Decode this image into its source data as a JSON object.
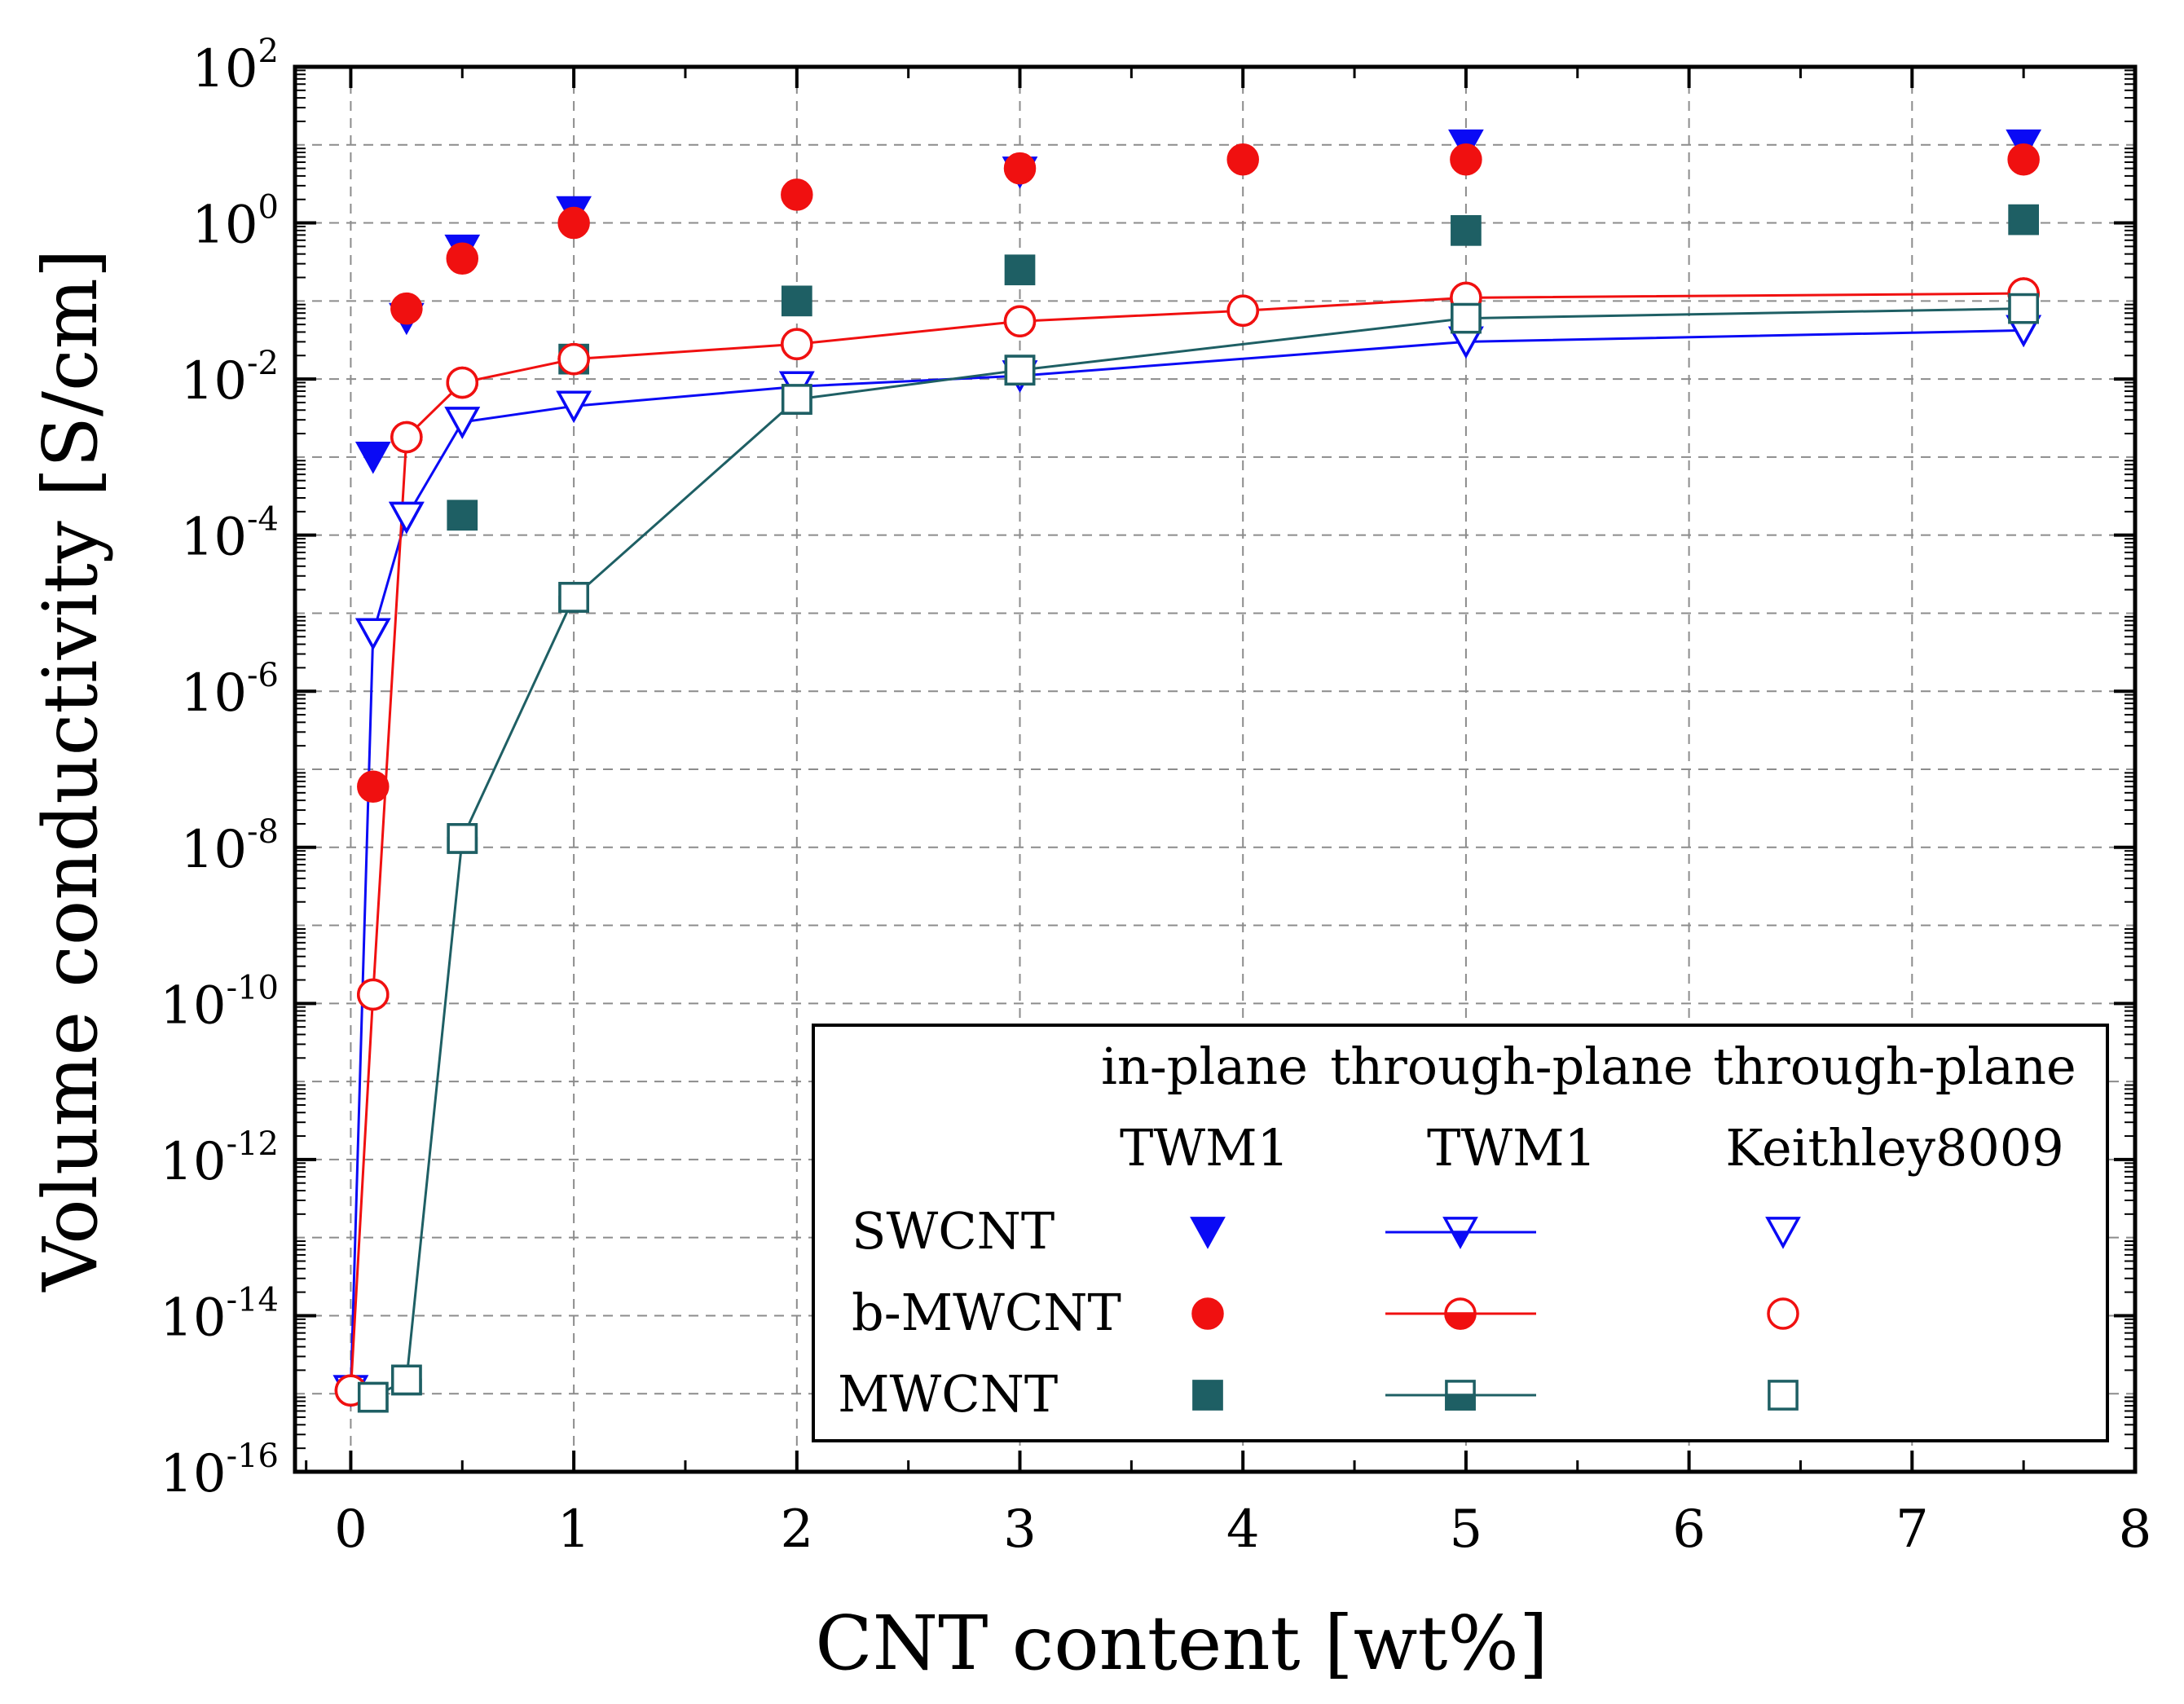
{
  "chart_data": {
    "type": "scatter",
    "title": "",
    "xlabel": "CNT content [wt%]",
    "ylabel": "Volume conductivity [S/cm]",
    "xlim": [
      -0.25,
      8
    ],
    "ylim_log10": [
      -16,
      2
    ],
    "yscale": "log",
    "x_ticks": [
      0,
      1,
      2,
      3,
      4,
      5,
      6,
      7,
      8
    ],
    "x_tick_labels": [
      "0",
      "1",
      "2",
      "3",
      "4",
      "5",
      "6",
      "7",
      "8"
    ],
    "y_ticks_exp": [
      2,
      0,
      -2,
      -4,
      -6,
      -8,
      -10,
      -12,
      -14,
      -16
    ],
    "y_tick_labels": [
      {
        "base": "10",
        "exp": "2"
      },
      {
        "base": "10",
        "exp": "0"
      },
      {
        "base": "10",
        "exp": "-2"
      },
      {
        "base": "10",
        "exp": "-4"
      },
      {
        "base": "10",
        "exp": "-6"
      },
      {
        "base": "10",
        "exp": "-8"
      },
      {
        "base": "10",
        "exp": "-10"
      },
      {
        "base": "10",
        "exp": "-12"
      },
      {
        "base": "10",
        "exp": "-14"
      },
      {
        "base": "10",
        "exp": "-16"
      }
    ],
    "grid": true,
    "legend": {
      "position": "bottom-right",
      "col_headers": [
        "in-plane",
        "through-plane",
        "through-plane"
      ],
      "col_subheaders": [
        "TWM1",
        "TWM1",
        "Keithley8009"
      ],
      "row_labels": [
        "SWCNT",
        "b-MWCNT",
        "MWCNT"
      ]
    },
    "colors": {
      "swcnt": "#0a0af5",
      "bmwcnt": "#f01010",
      "mwcnt": "#1e5f64"
    },
    "series": [
      {
        "name": "SWCNT in-plane TWM1",
        "material": "swcnt",
        "marker": "triangle-down",
        "fill": "filled",
        "line": false,
        "x": [
          0.1,
          0.25,
          0.5,
          1,
          3,
          5,
          7.5
        ],
        "y": [
          0.001,
          0.06,
          0.45,
          1.4,
          4.5,
          10,
          10
        ]
      },
      {
        "name": "b-MWCNT in-plane TWM1",
        "material": "bmwcnt",
        "marker": "circle",
        "fill": "filled",
        "line": false,
        "x": [
          0.1,
          0.25,
          0.5,
          1,
          2,
          3,
          4,
          5,
          7.5
        ],
        "y": [
          6e-08,
          0.08,
          0.35,
          1.0,
          2.3,
          5,
          6.5,
          6.5,
          6.5
        ]
      },
      {
        "name": "MWCNT in-plane TWM1",
        "material": "mwcnt",
        "marker": "square",
        "fill": "filled",
        "line": false,
        "x": [
          0.5,
          1,
          2,
          3,
          5,
          7.5
        ],
        "y": [
          0.00018,
          0.018,
          0.1,
          0.25,
          0.8,
          1.1
        ]
      },
      {
        "name": "SWCNT through-plane TWM1",
        "material": "swcnt",
        "marker": "triangle-down",
        "fill": "half",
        "line": true,
        "x": [
          0,
          0.1,
          0.25,
          0.5,
          1,
          2,
          3,
          5,
          7.5
        ],
        "y": [
          1.1e-15,
          5.5e-06,
          0.00017,
          0.0028,
          0.0045,
          0.008,
          0.011,
          0.03,
          0.042
        ]
      },
      {
        "name": "b-MWCNT through-plane TWM1",
        "material": "bmwcnt",
        "marker": "circle",
        "fill": "half",
        "line": true,
        "x": [
          0,
          0.1,
          0.25,
          0.5,
          1,
          2,
          3,
          4,
          5,
          7.5
        ],
        "y": [
          1.1e-15,
          1.3e-10,
          0.0018,
          0.009,
          0.018,
          0.028,
          0.055,
          0.075,
          0.11,
          0.125
        ]
      },
      {
        "name": "MWCNT through-plane TWM1",
        "material": "mwcnt",
        "marker": "square",
        "fill": "half",
        "line": true,
        "x": [
          0.1,
          0.25,
          0.5,
          1,
          2,
          3,
          5,
          7.5
        ],
        "y": [
          9e-16,
          1.5e-15,
          1.3e-08,
          1.6e-05,
          0.0055,
          0.013,
          0.06,
          0.08
        ]
      },
      {
        "name": "SWCNT through-plane Keithley8009",
        "material": "swcnt",
        "marker": "triangle-down",
        "fill": "open",
        "line": false,
        "x": [
          0,
          0.1,
          0.25,
          0.5,
          1,
          2,
          3,
          5,
          7.5
        ],
        "y": [
          1.1e-15,
          5.5e-06,
          0.00017,
          0.0028,
          0.0045,
          0.008,
          0.011,
          0.03,
          0.042
        ]
      },
      {
        "name": "b-MWCNT through-plane Keithley8009",
        "material": "bmwcnt",
        "marker": "circle",
        "fill": "open",
        "line": false,
        "x": [
          0,
          0.1,
          0.25,
          0.5,
          1,
          2,
          3,
          4,
          5,
          7.5
        ],
        "y": [
          1.1e-15,
          1.3e-10,
          0.0018,
          0.009,
          0.018,
          0.028,
          0.055,
          0.075,
          0.11,
          0.125
        ]
      },
      {
        "name": "MWCNT through-plane Keithley8009",
        "material": "mwcnt",
        "marker": "square",
        "fill": "open",
        "line": false,
        "x": [
          0.1,
          0.25,
          0.5,
          1,
          2,
          3,
          5,
          7.5
        ],
        "y": [
          9e-16,
          1.5e-15,
          1.3e-08,
          1.6e-05,
          0.0055,
          0.013,
          0.06,
          0.08
        ]
      }
    ]
  }
}
